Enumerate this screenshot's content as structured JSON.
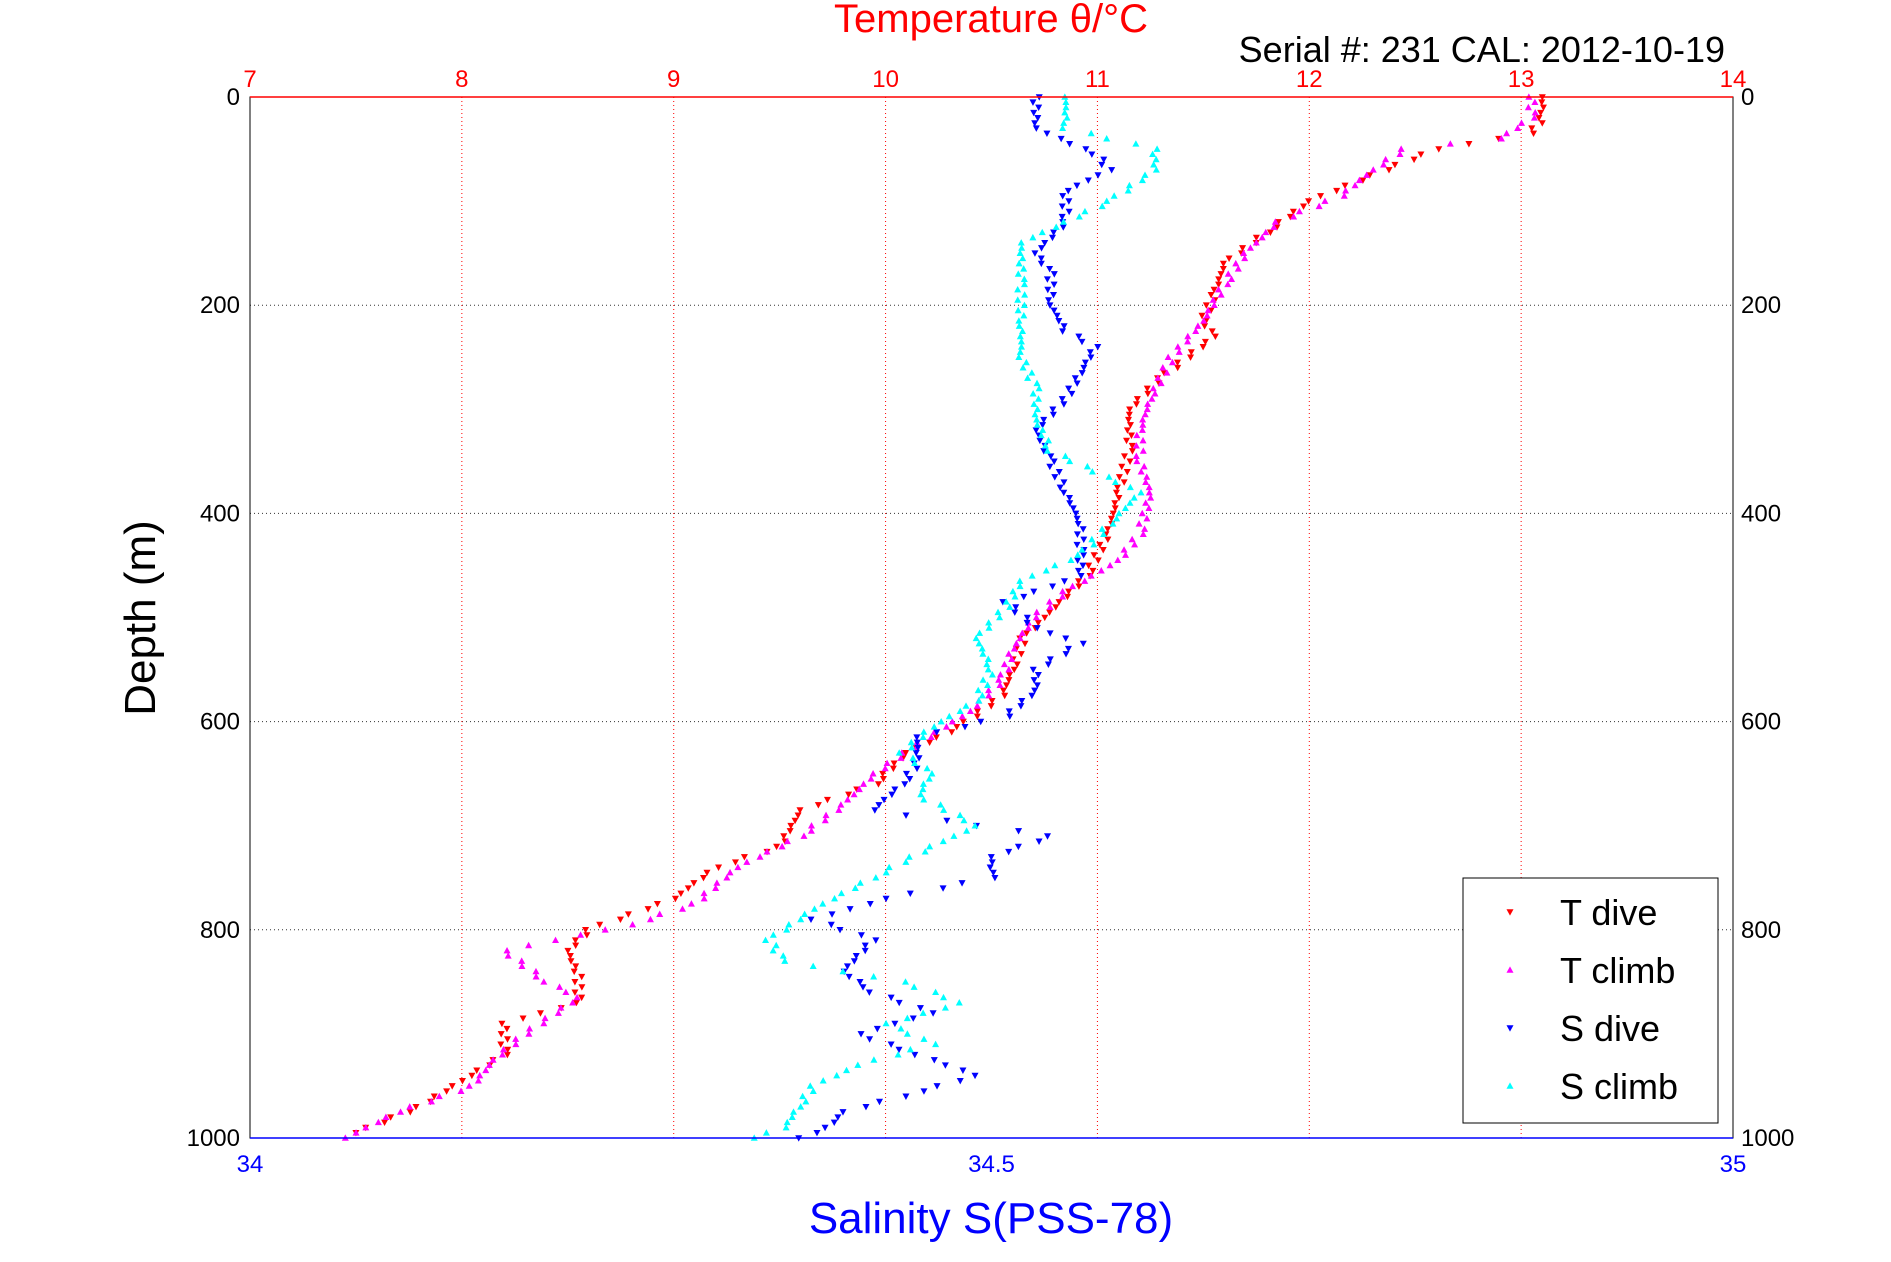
{
  "chart_data": {
    "type": "scatter",
    "title": "Temperature θ/°C",
    "subtitle": "Serial #: 231   CAL: 2012-10-19",
    "ylabel": "Depth (m)",
    "xlabel_bottom": "Salinity S(PSS-78)",
    "ylim": [
      1000,
      0
    ],
    "y_ticks": [
      0,
      200,
      400,
      600,
      800,
      1000
    ],
    "x_top_range": [
      7,
      14
    ],
    "x_top_ticks": [
      7,
      8,
      9,
      10,
      11,
      12,
      13,
      14
    ],
    "x_bottom_range": [
      34,
      35
    ],
    "x_bottom_ticks": [
      "34",
      "34.5",
      "35"
    ],
    "grid": true,
    "legend_position": "bottom-right",
    "series": [
      {
        "name": "T dive",
        "axis": "top",
        "color": "#ff0000",
        "points": [
          [
            13.1,
            0
          ],
          [
            13.1,
            20
          ],
          [
            13.05,
            35
          ],
          [
            12.6,
            50
          ],
          [
            12.3,
            75
          ],
          [
            12.0,
            100
          ],
          [
            11.8,
            130
          ],
          [
            11.6,
            160
          ],
          [
            11.55,
            190
          ],
          [
            11.5,
            215
          ],
          [
            11.55,
            230
          ],
          [
            11.3,
            270
          ],
          [
            11.15,
            300
          ],
          [
            11.15,
            340
          ],
          [
            11.1,
            380
          ],
          [
            11.05,
            420
          ],
          [
            10.95,
            460
          ],
          [
            10.75,
            500
          ],
          [
            10.65,
            520
          ],
          [
            10.6,
            550
          ],
          [
            10.55,
            575
          ],
          [
            10.35,
            605
          ],
          [
            10.1,
            630
          ],
          [
            9.95,
            660
          ],
          [
            9.6,
            685
          ],
          [
            9.5,
            720
          ],
          [
            9.2,
            740
          ],
          [
            9.0,
            770
          ],
          [
            8.6,
            800
          ],
          [
            8.5,
            820
          ],
          [
            8.55,
            845
          ],
          [
            8.55,
            870
          ],
          [
            8.2,
            890
          ],
          [
            8.2,
            920
          ],
          [
            8.0,
            945
          ],
          [
            7.8,
            970
          ],
          [
            7.5,
            995
          ]
        ]
      },
      {
        "name": "T climb",
        "axis": "top",
        "color": "#ff00ff",
        "points": [
          [
            13.05,
            0
          ],
          [
            13.05,
            20
          ],
          [
            12.9,
            40
          ],
          [
            12.45,
            50
          ],
          [
            12.3,
            70
          ],
          [
            12.15,
            95
          ],
          [
            11.85,
            120
          ],
          [
            11.7,
            150
          ],
          [
            11.6,
            180
          ],
          [
            11.5,
            215
          ],
          [
            11.35,
            250
          ],
          [
            11.25,
            290
          ],
          [
            11.2,
            320
          ],
          [
            11.2,
            350
          ],
          [
            11.25,
            380
          ],
          [
            11.2,
            420
          ],
          [
            11.1,
            445
          ],
          [
            10.85,
            475
          ],
          [
            10.7,
            500
          ],
          [
            10.6,
            530
          ],
          [
            10.55,
            560
          ],
          [
            10.4,
            590
          ],
          [
            10.2,
            615
          ],
          [
            9.95,
            650
          ],
          [
            9.8,
            680
          ],
          [
            9.6,
            710
          ],
          [
            9.3,
            740
          ],
          [
            9.1,
            775
          ],
          [
            8.8,
            795
          ],
          [
            8.2,
            820
          ],
          [
            8.4,
            850
          ],
          [
            8.55,
            865
          ],
          [
            8.3,
            900
          ],
          [
            8.15,
            925
          ],
          [
            8.05,
            950
          ],
          [
            7.7,
            975
          ],
          [
            7.45,
            1000
          ]
        ]
      },
      {
        "name": "S dive",
        "axis": "bottom",
        "color": "#0000ff",
        "points": [
          [
            34.53,
            0
          ],
          [
            34.53,
            30
          ],
          [
            34.57,
            55
          ],
          [
            34.58,
            70
          ],
          [
            34.55,
            90
          ],
          [
            34.55,
            120
          ],
          [
            34.53,
            150
          ],
          [
            34.54,
            170
          ],
          [
            34.54,
            200
          ],
          [
            34.55,
            225
          ],
          [
            34.57,
            240
          ],
          [
            34.56,
            265
          ],
          [
            34.55,
            290
          ],
          [
            34.53,
            320
          ],
          [
            34.54,
            350
          ],
          [
            34.55,
            380
          ],
          [
            34.56,
            410
          ],
          [
            34.56,
            440
          ],
          [
            34.56,
            460
          ],
          [
            34.51,
            485
          ],
          [
            34.53,
            510
          ],
          [
            34.56,
            525
          ],
          [
            34.53,
            550
          ],
          [
            34.53,
            570
          ],
          [
            34.51,
            595
          ],
          [
            34.45,
            615
          ],
          [
            34.45,
            640
          ],
          [
            34.44,
            660
          ],
          [
            34.42,
            685
          ],
          [
            34.54,
            710
          ],
          [
            34.5,
            730
          ],
          [
            34.5,
            750
          ],
          [
            34.43,
            770
          ],
          [
            34.38,
            790
          ],
          [
            34.42,
            810
          ],
          [
            34.4,
            840
          ],
          [
            34.42,
            860
          ],
          [
            34.46,
            880
          ],
          [
            34.41,
            900
          ],
          [
            34.45,
            920
          ],
          [
            34.49,
            940
          ],
          [
            34.44,
            960
          ],
          [
            34.4,
            975
          ],
          [
            34.39,
            990
          ],
          [
            34.37,
            1000
          ]
        ]
      },
      {
        "name": "S climb",
        "axis": "bottom",
        "color": "#00ffff",
        "points": [
          [
            34.55,
            0
          ],
          [
            34.55,
            30
          ],
          [
            34.61,
            50
          ],
          [
            34.61,
            70
          ],
          [
            34.58,
            100
          ],
          [
            34.52,
            140
          ],
          [
            34.52,
            180
          ],
          [
            34.52,
            220
          ],
          [
            34.52,
            250
          ],
          [
            34.53,
            280
          ],
          [
            34.53,
            310
          ],
          [
            34.54,
            340
          ],
          [
            34.6,
            380
          ],
          [
            34.58,
            410
          ],
          [
            34.56,
            440
          ],
          [
            34.52,
            465
          ],
          [
            34.51,
            490
          ],
          [
            34.49,
            520
          ],
          [
            34.5,
            550
          ],
          [
            34.49,
            580
          ],
          [
            34.46,
            605
          ],
          [
            34.44,
            630
          ],
          [
            34.46,
            650
          ],
          [
            34.45,
            670
          ],
          [
            34.49,
            700
          ],
          [
            34.46,
            720
          ],
          [
            34.42,
            750
          ],
          [
            34.38,
            780
          ],
          [
            34.35,
            810
          ],
          [
            34.36,
            830
          ],
          [
            34.44,
            850
          ],
          [
            34.48,
            870
          ],
          [
            34.43,
            890
          ],
          [
            34.46,
            910
          ],
          [
            34.41,
            930
          ],
          [
            34.38,
            950
          ],
          [
            34.37,
            970
          ],
          [
            34.36,
            990
          ],
          [
            34.34,
            1000
          ]
        ]
      }
    ]
  }
}
